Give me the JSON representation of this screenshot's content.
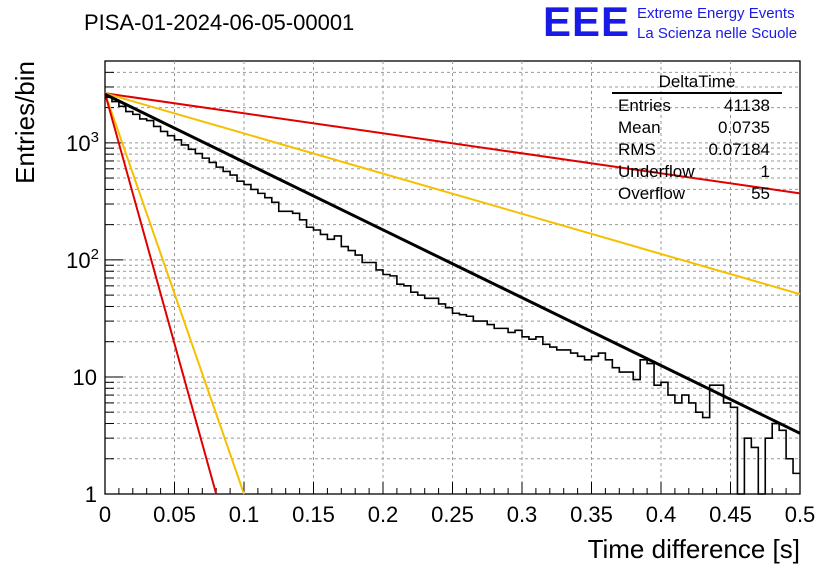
{
  "header": {
    "title": "PISA-01-2024-06-05-00001",
    "logo_text": "EEE",
    "logo_line1": "Extreme Energy Events",
    "logo_line2": "La Scienza nelle Scuole",
    "logo_color": "#1a1ae6"
  },
  "stats_box": {
    "title": "DeltaTime",
    "rows": [
      {
        "key": "Entries",
        "value": "41138"
      },
      {
        "key": "Mean",
        "value": "0.0735"
      },
      {
        "key": "RMS",
        "value": "0.07184"
      },
      {
        "key": "Underflow",
        "value": "1"
      },
      {
        "key": "Overflow",
        "value": "55"
      }
    ]
  },
  "chart_data": {
    "type": "line",
    "xlabel": "Time difference [s]",
    "ylabel": "Entries/bin",
    "xlim": [
      0,
      0.5
    ],
    "ylim": [
      1,
      5000
    ],
    "y_scale": "log",
    "grid": true,
    "x_ticks": [
      "0",
      "0.05",
      "0.1",
      "0.15",
      "0.2",
      "0.25",
      "0.3",
      "0.35",
      "0.4",
      "0.45",
      "0.5"
    ],
    "x_tick_values": [
      0,
      0.05,
      0.1,
      0.15,
      0.2,
      0.25,
      0.3,
      0.35,
      0.4,
      0.45,
      0.5
    ],
    "y_ticks": [
      "1",
      "10",
      "10^2",
      "10^3"
    ],
    "y_tick_values": [
      1,
      10,
      100,
      1000
    ],
    "histogram": {
      "name": "DeltaTime",
      "color": "#000000",
      "bin_width": 0.005,
      "counts": [
        2450,
        2250,
        2050,
        1850,
        1750,
        1600,
        1550,
        1380,
        1250,
        1150,
        1060,
        960,
        880,
        810,
        740,
        680,
        620,
        570,
        530,
        470,
        440,
        400,
        370,
        340,
        310,
        260,
        260,
        250,
        220,
        190,
        180,
        165,
        150,
        160,
        130,
        120,
        110,
        95,
        95,
        82,
        75,
        73,
        62,
        60,
        53,
        50,
        47,
        47,
        42,
        39,
        35,
        34,
        33,
        30,
        30,
        28,
        26,
        26,
        24,
        25,
        22,
        21,
        22,
        19,
        18,
        17,
        17,
        16,
        15,
        14,
        15,
        16,
        14,
        12,
        11,
        11,
        9.5,
        14,
        13,
        8.5,
        9,
        7,
        6,
        7,
        6,
        5,
        4.5,
        8.5,
        8.5,
        6,
        5.5,
        1,
        3,
        2.5,
        0.5,
        3,
        4,
        3.5,
        2,
        1.5
      ]
    },
    "fit": {
      "color": "#000000",
      "y0": 2600,
      "y_at_end": 3.3
    },
    "reference_curves": [
      {
        "color": "#e00000",
        "points": [
          [
            0,
            2650
          ],
          [
            0.5,
            370
          ]
        ]
      },
      {
        "color": "#f5c000",
        "points": [
          [
            0,
            2650
          ],
          [
            0.5,
            51
          ]
        ]
      },
      {
        "color": "#f5c000",
        "points": [
          [
            0,
            2650
          ],
          [
            0.1,
            1
          ]
        ]
      },
      {
        "color": "#e00000",
        "points": [
          [
            0,
            2650
          ],
          [
            0.08,
            1
          ]
        ]
      }
    ]
  }
}
